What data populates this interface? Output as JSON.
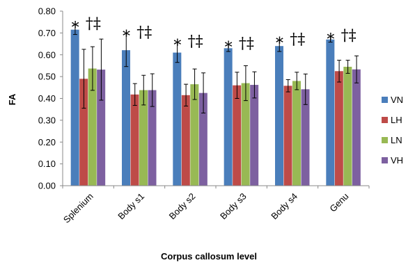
{
  "chart_data": {
    "type": "bar",
    "xlabel": "Corpus callosum level",
    "ylabel": "FA",
    "ylim": [
      0,
      0.8
    ],
    "ytick_step": 0.1,
    "yticks": [
      "0.00",
      "0.10",
      "0.20",
      "0.30",
      "0.40",
      "0.50",
      "0.60",
      "0.70",
      "0.80"
    ],
    "categories": [
      "Splenium",
      "Body s1",
      "Body s2",
      "Body s3",
      "Body s4",
      "Genu"
    ],
    "series": [
      {
        "name": "VN",
        "color": "#4a7ebb",
        "values": [
          0.715,
          0.621,
          0.61,
          0.63,
          0.64,
          0.67
        ],
        "errors": [
          0.022,
          0.075,
          0.045,
          0.015,
          0.025,
          0.012
        ]
      },
      {
        "name": "LH",
        "color": "#be4b48",
        "values": [
          0.49,
          0.418,
          0.415,
          0.46,
          0.458,
          0.525
        ],
        "errors": [
          0.135,
          0.05,
          0.05,
          0.06,
          0.028,
          0.05
        ]
      },
      {
        "name": "LN",
        "color": "#98b954",
        "values": [
          0.537,
          0.438,
          0.465,
          0.47,
          0.48,
          0.545
        ],
        "errors": [
          0.1,
          0.068,
          0.07,
          0.08,
          0.04,
          0.03
        ]
      },
      {
        "name": "VH",
        "color": "#7d60a0",
        "values": [
          0.532,
          0.438,
          0.425,
          0.462,
          0.442,
          0.533
        ],
        "errors": [
          0.14,
          0.075,
          0.092,
          0.06,
          0.07,
          0.062
        ]
      }
    ],
    "annotations": {
      "asterisk": "*",
      "dagger_double": "†‡"
    },
    "legend_position": "right",
    "grid": false
  }
}
